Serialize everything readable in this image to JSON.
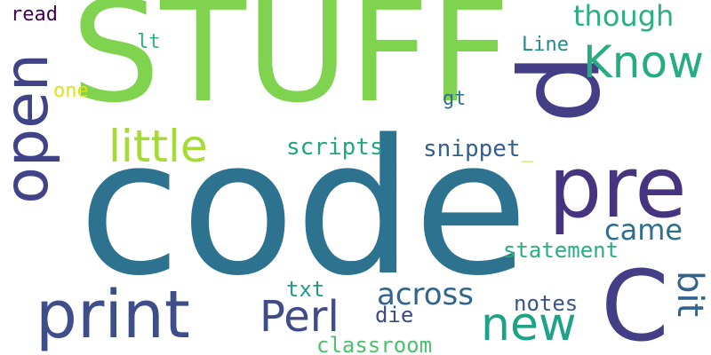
{
  "words": [
    {
      "id": "code",
      "text": "code",
      "color": "#2d728e"
    },
    {
      "id": "stuff",
      "text": "STUFF",
      "color": "#7fd34e"
    },
    {
      "id": "p",
      "text": "p",
      "color": "#433e85"
    },
    {
      "id": "pre",
      "text": "pre",
      "color": "#463480"
    },
    {
      "id": "c",
      "text": "C",
      "color": "#433e85"
    },
    {
      "id": "open",
      "text": "open",
      "color": "#404387"
    },
    {
      "id": "print",
      "text": "print",
      "color": "#3d4e8a"
    },
    {
      "id": "little",
      "text": "little",
      "color": "#a5db36"
    },
    {
      "id": "know",
      "text": "Know",
      "color": "#25ac82"
    },
    {
      "id": "new",
      "text": "new",
      "color": "#1fa287"
    },
    {
      "id": "perl",
      "text": "Perl",
      "color": "#3e4c8a"
    },
    {
      "id": "across",
      "text": "across",
      "color": "#32658e"
    },
    {
      "id": "bit",
      "text": "bit",
      "color": "#33638d"
    },
    {
      "id": "came",
      "text": "came",
      "color": "#2e6e8e"
    },
    {
      "id": "though",
      "text": "though",
      "color": "#2ab07f"
    },
    {
      "id": "scripts",
      "text": "scripts",
      "color": "#21a585"
    },
    {
      "id": "snippet",
      "text": "snippet",
      "color": "#355f8d"
    },
    {
      "id": "statement",
      "text": "statement",
      "color": "#29af7f"
    },
    {
      "id": "notes",
      "text": "notes",
      "color": "#3a538b"
    },
    {
      "id": "classroom",
      "text": "classroom",
      "color": "#4ac16d"
    },
    {
      "id": "txt",
      "text": "txt",
      "color": "#1f9a8a"
    },
    {
      "id": "die",
      "text": "die",
      "color": "#3e4989"
    },
    {
      "id": "read",
      "text": "read",
      "color": "#440154"
    },
    {
      "id": "lt",
      "text": "lt",
      "color": "#2db27d"
    },
    {
      "id": "one",
      "text": "one",
      "color": "#dde318"
    },
    {
      "id": "gt",
      "text": "gt",
      "color": "#2c728e"
    },
    {
      "id": "line",
      "text": "Line",
      "color": "#23898e"
    },
    {
      "id": "underscore",
      "text": "_",
      "color": "#b5de2b"
    }
  ]
}
